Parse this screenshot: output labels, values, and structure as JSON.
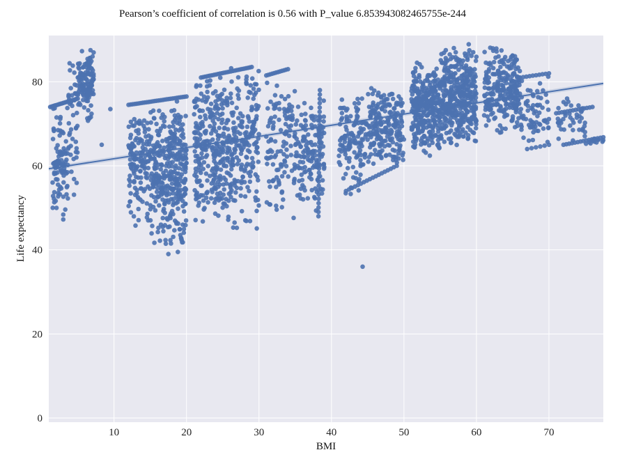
{
  "chart_data": {
    "type": "scatter",
    "title": "Pearson’s coefficient of correlation is 0.56 with P_value 6.853943082465755e-244",
    "xlabel": "BMI",
    "ylabel": "Life expectancy",
    "xlim": [
      1,
      77.5
    ],
    "ylim": [
      -1,
      91
    ],
    "xticks": [
      10,
      20,
      30,
      40,
      50,
      60,
      70
    ],
    "yticks": [
      0,
      20,
      40,
      60,
      80
    ],
    "grid": true,
    "point_color": "#4c72b0",
    "background_color": "#e8e8f0",
    "regression": {
      "x": [
        1,
        77.5
      ],
      "y": [
        59.3,
        79.6
      ]
    },
    "clusters": [
      {
        "x": [
          1.5,
          3.5
        ],
        "y": [
          45,
          75
        ],
        "n": 90
      },
      {
        "x": [
          3.5,
          5
        ],
        "y": [
          50,
          88
        ],
        "n": 50
      },
      {
        "x": [
          5,
          7.2
        ],
        "y": [
          70,
          89
        ],
        "n": 130
      },
      {
        "x": [
          12,
          15
        ],
        "y": [
          45,
          76
        ],
        "n": 140
      },
      {
        "x": [
          15,
          20
        ],
        "y": [
          39,
          76
        ],
        "n": 360
      },
      {
        "x": [
          21,
          26
        ],
        "y": [
          46,
          82
        ],
        "n": 300
      },
      {
        "x": [
          26,
          30
        ],
        "y": [
          44,
          86
        ],
        "n": 200
      },
      {
        "x": [
          31,
          35
        ],
        "y": [
          46,
          83
        ],
        "n": 120
      },
      {
        "x": [
          35,
          39
        ],
        "y": [
          48,
          78
        ],
        "n": 150
      },
      {
        "x": [
          41,
          45
        ],
        "y": [
          53,
          79
        ],
        "n": 130
      },
      {
        "x": [
          45,
          50
        ],
        "y": [
          60,
          79
        ],
        "n": 220
      },
      {
        "x": [
          51,
          55
        ],
        "y": [
          62,
          85
        ],
        "n": 330
      },
      {
        "x": [
          55,
          60
        ],
        "y": [
          64,
          89
        ],
        "n": 400
      },
      {
        "x": [
          61,
          66
        ],
        "y": [
          67,
          89
        ],
        "n": 260
      },
      {
        "x": [
          66,
          70
        ],
        "y": [
          64,
          82
        ],
        "n": 70
      },
      {
        "x": [
          71,
          75
        ],
        "y": [
          65,
          76
        ],
        "n": 40
      },
      {
        "x": [
          75,
          77.5
        ],
        "y": [
          65,
          67
        ],
        "n": 12
      }
    ],
    "lines": [
      {
        "x": [
          1.2,
          5
        ],
        "y": [
          74,
          76
        ],
        "n": 20
      },
      {
        "x": [
          12,
          20
        ],
        "y": [
          74.5,
          76.5
        ],
        "n": 30
      },
      {
        "x": [
          22,
          29
        ],
        "y": [
          81,
          83.5
        ],
        "n": 28
      },
      {
        "x": [
          31,
          34
        ],
        "y": [
          81.5,
          83
        ],
        "n": 12
      },
      {
        "x": [
          38.2,
          38.4
        ],
        "y": [
          48,
          78
        ],
        "n": 30
      },
      {
        "x": [
          42,
          49
        ],
        "y": [
          54,
          60
        ],
        "n": 18
      },
      {
        "x": [
          66,
          70
        ],
        "y": [
          81,
          82
        ],
        "n": 10
      },
      {
        "x": [
          67,
          70
        ],
        "y": [
          64,
          65
        ],
        "n": 6
      },
      {
        "x": [
          72,
          77.5
        ],
        "y": [
          65,
          66.8
        ],
        "n": 15
      },
      {
        "x": [
          71,
          76
        ],
        "y": [
          72.5,
          74
        ],
        "n": 14
      }
    ],
    "outliers": [
      {
        "x": 44.3,
        "y": 36
      },
      {
        "x": 17.5,
        "y": 39
      },
      {
        "x": 72.5,
        "y": 76
      },
      {
        "x": 8.3,
        "y": 65
      },
      {
        "x": 9.5,
        "y": 73.5
      }
    ]
  }
}
